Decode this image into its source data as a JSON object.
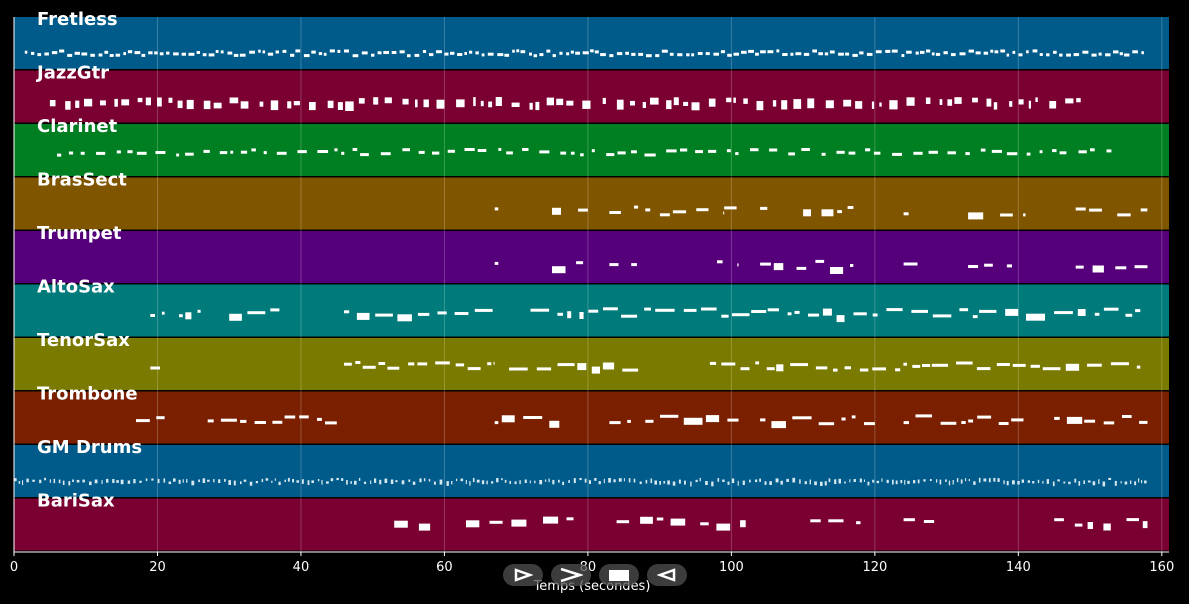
{
  "chart_data": {
    "type": "piano-roll",
    "xlabel": "Temps (secondes)",
    "xlim": [
      0,
      161
    ],
    "xticks": [
      0,
      20,
      40,
      60,
      80,
      100,
      120,
      140,
      160
    ],
    "grid": true,
    "tracks": [
      {
        "name": "Fretless",
        "color": "#005b8a",
        "activity": [
          [
            1.5,
            157.5
          ]
        ],
        "notes_style": "dense-line",
        "level": 0.65
      },
      {
        "name": "JazzGtr",
        "color": "#7a0032",
        "activity": [
          [
            5,
            149
          ]
        ],
        "notes_style": "chords",
        "level": 0.55
      },
      {
        "name": "Clarinet",
        "color": "#007f22",
        "activity": [
          [
            6,
            154
          ]
        ],
        "notes_style": "melody",
        "level": 0.5
      },
      {
        "name": "BrasSect",
        "color": "#805500",
        "activity": [
          [
            67,
            67.5
          ],
          [
            75,
            80
          ],
          [
            83,
            87
          ],
          [
            88,
            99
          ],
          [
            99,
            101
          ],
          [
            104,
            105
          ],
          [
            110,
            117
          ],
          [
            124,
            126
          ],
          [
            133,
            141
          ],
          [
            148,
            158
          ]
        ],
        "notes_style": "sparse",
        "level": 0.6
      },
      {
        "name": "Trumpet",
        "color": "#55007a",
        "activity": [
          [
            67,
            67.5
          ],
          [
            75,
            80
          ],
          [
            83,
            87
          ],
          [
            98,
            101
          ],
          [
            104,
            117
          ],
          [
            124,
            126
          ],
          [
            133,
            141
          ],
          [
            148,
            158
          ]
        ],
        "notes_style": "sparse",
        "level": 0.6
      },
      {
        "name": "AltoSax",
        "color": "#007a7a",
        "activity": [
          [
            19,
            21
          ],
          [
            23,
            26
          ],
          [
            30,
            37
          ],
          [
            46,
            67
          ],
          [
            72,
            157
          ]
        ],
        "notes_style": "phrases",
        "level": 0.5
      },
      {
        "name": "TenorSax",
        "color": "#7a7a00",
        "activity": [
          [
            19,
            21
          ],
          [
            46,
            67
          ],
          [
            69,
            87
          ],
          [
            97,
            157
          ]
        ],
        "notes_style": "phrases",
        "level": 0.5
      },
      {
        "name": "Trombone",
        "color": "#7a2000",
        "activity": [
          [
            17,
            21
          ],
          [
            27,
            45
          ],
          [
            67,
            67.5
          ],
          [
            68,
            76
          ],
          [
            83,
            86
          ],
          [
            88,
            101
          ],
          [
            104,
            120
          ],
          [
            124,
            141
          ],
          [
            145,
            158
          ]
        ],
        "notes_style": "phrases",
        "level": 0.5
      },
      {
        "name": "GM Drums",
        "color": "#005b8a",
        "activity": [
          [
            0,
            158
          ]
        ],
        "notes_style": "drums",
        "level": 0.65
      },
      {
        "name": "BariSax",
        "color": "#7a0032",
        "activity": [
          [
            53,
            58
          ],
          [
            63,
            78
          ],
          [
            84,
            102
          ],
          [
            111,
            118
          ],
          [
            124,
            129
          ],
          [
            145,
            158
          ]
        ],
        "notes_style": "sparse",
        "level": 0.4
      }
    ]
  },
  "toolbar": {
    "play_label": "play",
    "forward_label": "forward",
    "stop_label": "stop",
    "back_label": "back"
  }
}
